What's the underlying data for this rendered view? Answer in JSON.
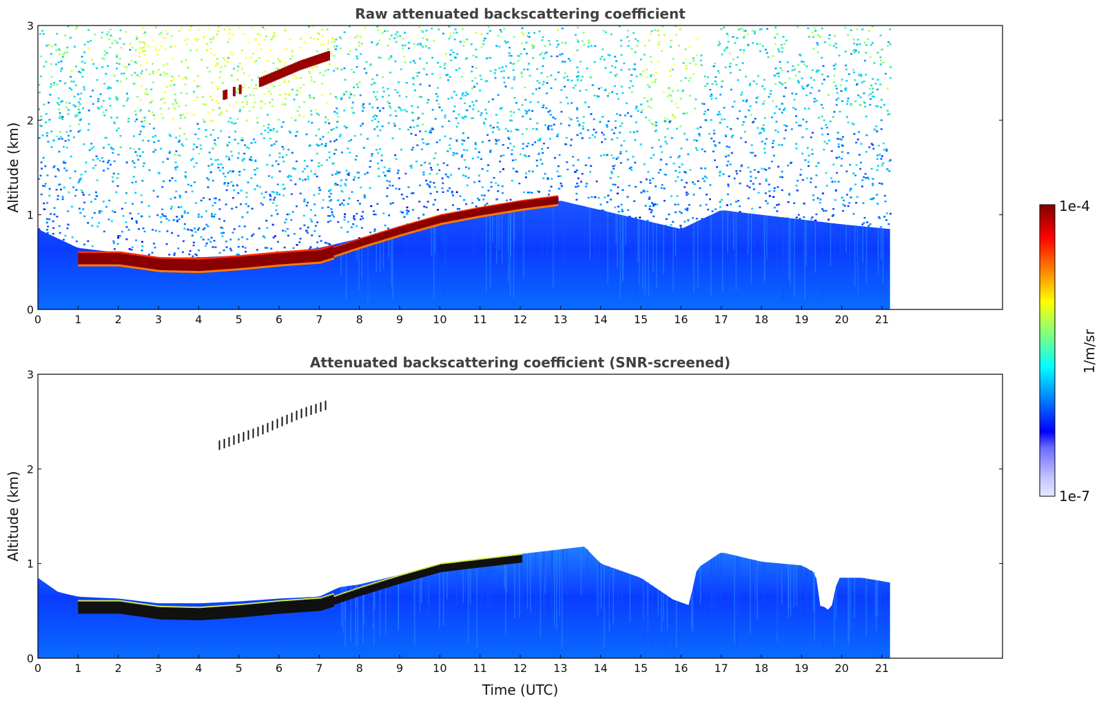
{
  "chart_data": [
    {
      "type": "heatmap",
      "title": "Raw attenuated backscattering coefficient",
      "ylabel": "Altitude (km)",
      "xlim": [
        0,
        24
      ],
      "ylim": [
        0,
        3
      ],
      "data_until_hour": 21.2,
      "x_ticks": [
        "0",
        "1",
        "2",
        "3",
        "4",
        "5",
        "6",
        "7",
        "8",
        "9",
        "10",
        "11",
        "12",
        "13",
        "14",
        "15",
        "16",
        "17",
        "18",
        "19",
        "20",
        "21"
      ],
      "y_ticks": [
        "0",
        "1",
        "2",
        "3"
      ],
      "layer_top_km": [
        {
          "t": 0,
          "km": 0.85
        },
        {
          "t": 1,
          "km": 0.65
        },
        {
          "t": 2,
          "km": 0.6
        },
        {
          "t": 3,
          "km": 0.55
        },
        {
          "t": 4,
          "km": 0.55
        },
        {
          "t": 5,
          "km": 0.57
        },
        {
          "t": 6,
          "km": 0.6
        },
        {
          "t": 7,
          "km": 0.65
        },
        {
          "t": 8,
          "km": 0.75
        },
        {
          "t": 9,
          "km": 0.85
        },
        {
          "t": 10,
          "km": 0.98
        },
        {
          "t": 11,
          "km": 1.05
        },
        {
          "t": 12,
          "km": 1.1
        },
        {
          "t": 13,
          "km": 1.15
        },
        {
          "t": 14,
          "km": 1.05
        },
        {
          "t": 15,
          "km": 0.95
        },
        {
          "t": 16,
          "km": 0.85
        },
        {
          "t": 17,
          "km": 1.05
        },
        {
          "t": 18,
          "km": 1.0
        },
        {
          "t": 19,
          "km": 0.95
        },
        {
          "t": 20,
          "km": 0.9
        },
        {
          "t": 21.2,
          "km": 0.85
        }
      ],
      "cloud_layer": [
        {
          "t": 1.0,
          "km": 0.53
        },
        {
          "t": 2.0,
          "km": 0.53
        },
        {
          "t": 3.0,
          "km": 0.47
        },
        {
          "t": 4.0,
          "km": 0.46
        },
        {
          "t": 5.0,
          "km": 0.49
        },
        {
          "t": 6.0,
          "km": 0.53
        },
        {
          "t": 7.0,
          "km": 0.56
        },
        {
          "t": 7.3,
          "km": 0.6
        },
        {
          "t": 8.0,
          "km": 0.7
        },
        {
          "t": 9.0,
          "km": 0.83
        },
        {
          "t": 10.0,
          "km": 0.95
        },
        {
          "t": 11.0,
          "km": 1.03
        },
        {
          "t": 12.0,
          "km": 1.1
        },
        {
          "t": 12.9,
          "km": 1.15
        }
      ],
      "elevated_layer": [
        {
          "t": 4.5,
          "km": 2.25
        },
        {
          "t": 5.5,
          "km": 2.4
        },
        {
          "t": 6.5,
          "km": 2.58
        },
        {
          "t": 7.2,
          "km": 2.68
        }
      ]
    },
    {
      "type": "heatmap",
      "title": "Attenuated backscattering coefficient (SNR-screened)",
      "ylabel": "Altitude (km)",
      "xlabel": "Time (UTC)",
      "xlim": [
        0,
        24
      ],
      "ylim": [
        0,
        3
      ],
      "data_until_hour": 21.2,
      "x_ticks": [
        "0",
        "1",
        "2",
        "3",
        "4",
        "5",
        "6",
        "7",
        "8",
        "9",
        "10",
        "11",
        "12",
        "13",
        "14",
        "15",
        "16",
        "17",
        "18",
        "19",
        "20",
        "21"
      ],
      "y_ticks": [
        "0",
        "1",
        "2",
        "3"
      ],
      "layer_top_km": [
        {
          "t": 0,
          "km": 0.85
        },
        {
          "t": 0.5,
          "km": 0.7
        },
        {
          "t": 1,
          "km": 0.65
        },
        {
          "t": 2,
          "km": 0.63
        },
        {
          "t": 3,
          "km": 0.58
        },
        {
          "t": 4,
          "km": 0.58
        },
        {
          "t": 5,
          "km": 0.6
        },
        {
          "t": 6,
          "km": 0.63
        },
        {
          "t": 7,
          "km": 0.65
        },
        {
          "t": 7.5,
          "km": 0.75
        },
        {
          "t": 8,
          "km": 0.78
        },
        {
          "t": 9,
          "km": 0.88
        },
        {
          "t": 10,
          "km": 0.98
        },
        {
          "t": 11,
          "km": 1.05
        },
        {
          "t": 12,
          "km": 1.1
        },
        {
          "t": 13,
          "km": 1.15
        },
        {
          "t": 13.6,
          "km": 1.18
        },
        {
          "t": 14,
          "km": 1.0
        },
        {
          "t": 15,
          "km": 0.85
        },
        {
          "t": 15.8,
          "km": 0.62
        },
        {
          "t": 16.2,
          "km": 0.56
        },
        {
          "t": 16.4,
          "km": 0.95
        },
        {
          "t": 17,
          "km": 1.12
        },
        {
          "t": 18,
          "km": 1.02
        },
        {
          "t": 19,
          "km": 0.98
        },
        {
          "t": 19.35,
          "km": 0.9
        },
        {
          "t": 19.5,
          "km": 0.45
        },
        {
          "t": 19.6,
          "km": 0.6
        },
        {
          "t": 19.7,
          "km": 0.45
        },
        {
          "t": 19.9,
          "km": 0.85
        },
        {
          "t": 20.5,
          "km": 0.85
        },
        {
          "t": 21.2,
          "km": 0.8
        }
      ],
      "cloud_layer": [
        {
          "t": 1.0,
          "km": 0.53
        },
        {
          "t": 2.0,
          "km": 0.53
        },
        {
          "t": 3.0,
          "km": 0.47
        },
        {
          "t": 4.0,
          "km": 0.46
        },
        {
          "t": 5.0,
          "km": 0.49
        },
        {
          "t": 6.0,
          "km": 0.53
        },
        {
          "t": 7.0,
          "km": 0.56
        },
        {
          "t": 7.3,
          "km": 0.6
        },
        {
          "t": 8.0,
          "km": 0.7
        },
        {
          "t": 9.0,
          "km": 0.83
        },
        {
          "t": 10.0,
          "km": 0.95
        },
        {
          "t": 11.0,
          "km": 1.0
        },
        {
          "t": 12.0,
          "km": 1.05
        }
      ],
      "elevated_layer": [
        {
          "t": 4.5,
          "km": 2.25
        },
        {
          "t": 5.5,
          "km": 2.4
        },
        {
          "t": 6.5,
          "km": 2.58
        },
        {
          "t": 7.2,
          "km": 2.68
        }
      ]
    }
  ],
  "colorbar": {
    "label": "1/m/sr",
    "max_label": "1e-4",
    "min_label": "1e-7",
    "colors": [
      "#e8e8ff",
      "#c9c9ff",
      "#9b9bff",
      "#6a6aff",
      "#0000ff",
      "#0040ff",
      "#0080ff",
      "#00c0ff",
      "#00ffff",
      "#40ffbf",
      "#80ff80",
      "#bfff40",
      "#ffff00",
      "#ffbf00",
      "#ff8000",
      "#ff4000",
      "#ff0000",
      "#bf0000",
      "#800000"
    ]
  }
}
